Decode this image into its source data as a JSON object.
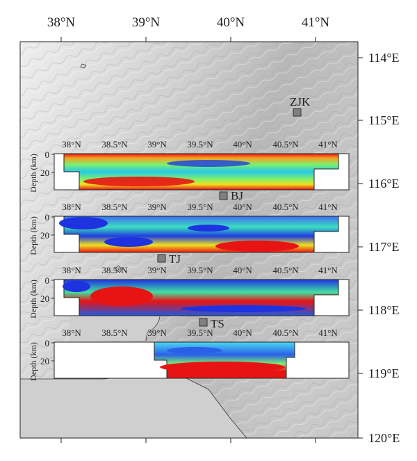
{
  "map": {
    "lat_ticks_top": [
      "38°N",
      "39°N",
      "40°N",
      "41°N"
    ],
    "lon_ticks_right": [
      "114°E",
      "115°E",
      "116°E",
      "117°E",
      "118°E",
      "119°E",
      "120°E"
    ],
    "stations": [
      {
        "code": "ZJK"
      },
      {
        "code": "BJ"
      },
      {
        "code": "TJ"
      },
      {
        "code": "TS"
      }
    ],
    "colors": {
      "land": "#d9d9d9",
      "sea": "#cfcfcf",
      "station_marker": "#808080",
      "profile_low": "#1e32e0",
      "profile_mid": "#4ef08a",
      "profile_high": "#e81414"
    }
  },
  "profiles": [
    {
      "depth_label": "Depth (km)",
      "depth_ticks": [
        "0",
        "20"
      ],
      "lat_ticks": [
        "38°N",
        "38.5°N",
        "39°N",
        "39.5°N",
        "40°N",
        "40.5°N",
        "41°N"
      ]
    },
    {
      "depth_label": "Depth (km)",
      "depth_ticks": [
        "0",
        "20"
      ],
      "lat_ticks": [
        "38°N",
        "38.5°N",
        "39°N",
        "39.5°N",
        "40°N",
        "40.5°N",
        "41°N"
      ]
    },
    {
      "depth_label": "Depth (km)",
      "depth_ticks": [
        "0",
        "20"
      ],
      "lat_ticks": [
        "38°N",
        "38.5°N",
        "39°N",
        "39.5°N",
        "40°N",
        "40.5°N",
        "41°N"
      ]
    },
    {
      "depth_label": "Depth (km)",
      "depth_ticks": [
        "0",
        "20"
      ],
      "lat_ticks": [
        "38°N",
        "38.5°N",
        "39°N",
        "39.5°N",
        "40°N",
        "40.5°N",
        "41°N"
      ]
    }
  ]
}
